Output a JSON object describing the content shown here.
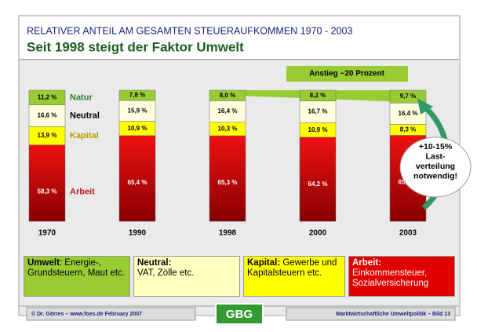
{
  "header": {
    "kicker": "RELATIVER ANTEIL AM GESAMTEN STEUERAUFKOMMEN 1970 - 2003",
    "title": "Seit 1998 steigt der Faktor Umwelt"
  },
  "chart_data": {
    "type": "bar",
    "stacked": true,
    "categories": [
      "1970",
      "1990",
      "1998",
      "2000",
      "2003"
    ],
    "series": [
      {
        "name": "Arbeit",
        "color": "#cc0000",
        "values": [
          58.3,
          65.4,
          65.3,
          64.2,
          65.6
        ],
        "value_labels": [
          "58,3 %",
          "65,4 %",
          "65,3 %",
          "64,2 %",
          "65,6 %"
        ]
      },
      {
        "name": "Kapital",
        "color": "#ffff00",
        "values": [
          13.9,
          10.9,
          10.3,
          10.9,
          8.3
        ],
        "value_labels": [
          "13,9 %",
          "10,9 %",
          "10,3 %",
          "10,9 %",
          "8,3 %"
        ]
      },
      {
        "name": "Neutral",
        "color": "#ffffe0",
        "values": [
          16.6,
          15.9,
          16.4,
          16.7,
          16.4
        ],
        "value_labels": [
          "16,6 %",
          "15,9 %",
          "16,4 %",
          "16,7 %",
          "16,4 %"
        ]
      },
      {
        "name": "Natur",
        "color": "#99cc33",
        "values": [
          11.2,
          7.8,
          8.0,
          8.2,
          9.7
        ],
        "value_labels": [
          "11,2 %",
          "7,8 %",
          "8,0 %",
          "8,2 %",
          "9,7 %"
        ]
      }
    ],
    "annotation": "Anstieg ~20 Prozent",
    "callout": [
      "+10-15%",
      "Last-",
      "verteilung",
      "notwendig!"
    ]
  },
  "legend_boxes": [
    {
      "term": "Umwelt",
      "text": ": Energie-, Grundsteuern, Maut etc."
    },
    {
      "term": "Neutral:",
      "text": "VAT, Zölle etc."
    },
    {
      "term": "Kapital:",
      "text": " Gewerbe und Kapitalsteuern etc."
    },
    {
      "term": "Arbeit:",
      "text": "Einkommensteuer, Sozialversicherung"
    }
  ],
  "footer": {
    "left": "© Dr. Görres – www.foes.de February 2007",
    "logo": "GBG",
    "right": "Marktwirtschaftliche Umweltpolitik – Bild 13"
  }
}
